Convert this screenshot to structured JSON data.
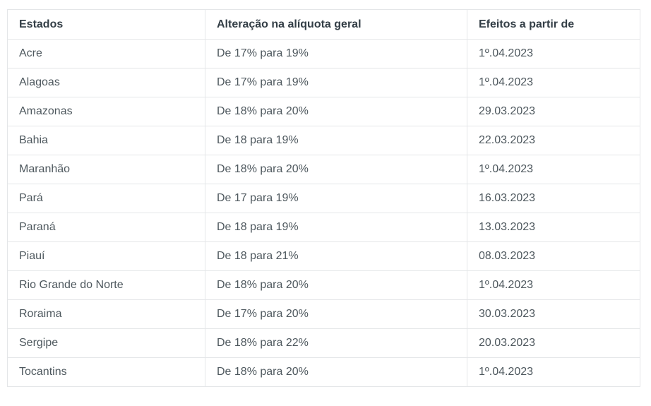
{
  "table": {
    "columns": [
      {
        "label": "Estados"
      },
      {
        "label": "Alteração na alíquota geral"
      },
      {
        "label": "Efeitos a partir de"
      }
    ],
    "rows": [
      {
        "estado": "Acre",
        "alteracao": "De 17% para 19%",
        "efeitos": "1º.04.2023"
      },
      {
        "estado": "Alagoas",
        "alteracao": "De 17% para 19%",
        "efeitos": "1º.04.2023"
      },
      {
        "estado": "Amazonas",
        "alteracao": "De 18% para 20%",
        "efeitos": "29.03.2023"
      },
      {
        "estado": "Bahia",
        "alteracao": "De 18 para 19%",
        "efeitos": "22.03.2023"
      },
      {
        "estado": "Maranhão",
        "alteracao": "De 18% para 20%",
        "efeitos": "1º.04.2023"
      },
      {
        "estado": "Pará",
        "alteracao": "De 17 para 19%",
        "efeitos": "16.03.2023"
      },
      {
        "estado": "Paraná",
        "alteracao": "De 18 para 19%",
        "efeitos": "13.03.2023"
      },
      {
        "estado": "Piauí",
        "alteracao": "De 18 para 21%",
        "efeitos": "08.03.2023"
      },
      {
        "estado": "Rio Grande do Norte",
        "alteracao": "De 18% para 20%",
        "efeitos": "1º.04.2023"
      },
      {
        "estado": "Roraima",
        "alteracao": "De 17% para 20%",
        "efeitos": "30.03.2023"
      },
      {
        "estado": "Sergipe",
        "alteracao": "De 18% para 22%",
        "efeitos": "20.03.2023"
      },
      {
        "estado": "Tocantins",
        "alteracao": "De 18% para 20%",
        "efeitos": "1º.04.2023"
      }
    ]
  },
  "colors": {
    "background": "#ffffff",
    "border": "#e4e6e8",
    "header_text": "#333e46",
    "body_text": "#4e585e"
  }
}
